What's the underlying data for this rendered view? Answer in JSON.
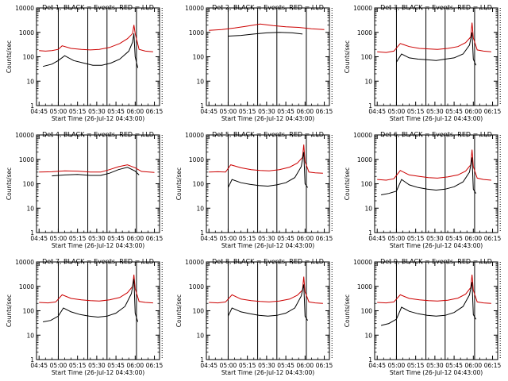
{
  "figure": {
    "panels": [
      {
        "title": "Det 1, BLACK = Events, RED = LLD",
        "xlabel": "Start Time (26-Jul-12 04:43:00)",
        "ylabel": "Counts/sec"
      },
      {
        "title": "Det 2, BLACK = Events, RED = LLD",
        "xlabel": "Start Time (26-Jul-12 04:43:00)",
        "ylabel": ""
      },
      {
        "title": "Det 3, BLACK = Events, RED = LLD",
        "xlabel": "Start Time (26-Jul-12 04:43:00)",
        "ylabel": "Counts/sec"
      },
      {
        "title": "Det 4, BLACK = Events, RED = LLD",
        "xlabel": "Start Time (26-Jul-12 04:43:00)",
        "ylabel": "Counts/sec"
      },
      {
        "title": "Det 5, BLACK = Events, RED = LLD",
        "xlabel": "Start Time (26-Jul-12 04:43:00)",
        "ylabel": "Counts/sec"
      },
      {
        "title": "Det 6, BLACK = Events, RED = LLD",
        "xlabel": "Start Time (26-Jul-12 04:43:00)",
        "ylabel": "Counts/sec"
      },
      {
        "title": "Det 7, BLACK = Events, RED = LLD",
        "xlabel": "Start Time (26-Jul-12 04:43:00)",
        "ylabel": "Counts/sec"
      },
      {
        "title": "Det 8, BLACK = Events, RED = LLD",
        "xlabel": "Start Time (26-Jul-12 04:43:00)",
        "ylabel": "Counts/sec"
      },
      {
        "title": "Det 9, BLACK = Events, RED = LLD",
        "xlabel": "Start Time (26-Jul-12 04:43:00)",
        "ylabel": "Counts/sec"
      }
    ]
  },
  "chart_data": [
    {
      "panel": 1,
      "type": "line",
      "title": "Det 1, BLACK = Events, RED = LLD",
      "xlabel": "Start Time (26-Jul-12 04:43:00)",
      "ylabel": "Counts/sec",
      "x_ticks": [
        "04:45",
        "05:00",
        "05:15",
        "05:30",
        "05:45",
        "06:00",
        "06:15"
      ],
      "y_ticks": [
        "1",
        "10",
        "100",
        "1000",
        "10000"
      ],
      "y_scale": "log",
      "ylim": [
        1,
        10000
      ],
      "xlim_minutes": [
        -2,
        94
      ],
      "vlines_solid": [
        "05:00",
        "05:23",
        "05:38",
        "06:01"
      ],
      "vlines_dotted": [
        "06:21"
      ],
      "series": [
        {
          "color": "#cc0000",
          "x": [
            "04:45",
            "04:50",
            "04:55",
            "05:00",
            "05:03",
            "05:10",
            "05:18",
            "05:25",
            "05:32",
            "05:40",
            "05:48",
            "05:54",
            "05:58",
            "05:59",
            "06:00",
            "06:03",
            "06:08",
            "06:14"
          ],
          "values": [
            180,
            170,
            180,
            200,
            280,
            220,
            200,
            190,
            200,
            240,
            350,
            550,
            900,
            2000,
            900,
            200,
            170,
            160
          ]
        },
        {
          "color": "#000000",
          "x": [
            "04:48",
            "04:55",
            "05:00",
            "05:05",
            "05:12",
            "05:20",
            "05:27",
            "05:34",
            "05:41",
            "05:48",
            "05:55",
            "05:58",
            "05:59",
            "06:00",
            "06:02"
          ],
          "values": [
            40,
            50,
            70,
            110,
            70,
            55,
            45,
            45,
            55,
            80,
            170,
            400,
            900,
            100,
            35
          ]
        }
      ]
    },
    {
      "panel": 2,
      "type": "line",
      "title": "Det 2, BLACK = Events, RED = LLD",
      "xlabel": "Start Time (26-Jul-12 04:43:00)",
      "ylabel": "",
      "x_ticks": [
        "04:45",
        "05:00",
        "05:15",
        "05:30",
        "05:45",
        "06:00",
        "06:15"
      ],
      "y_ticks": [
        "1",
        "10",
        "100",
        "1000",
        "10000"
      ],
      "y_scale": "log",
      "ylim": [
        1,
        10000
      ],
      "xlim_minutes": [
        -2,
        94
      ],
      "vlines_solid": [
        "05:00",
        "05:23",
        "05:38",
        "06:01"
      ],
      "vlines_dotted": [
        "06:21"
      ],
      "series": [
        {
          "color": "#cc0000",
          "x": [
            "04:45",
            "04:55",
            "05:05",
            "05:15",
            "05:25",
            "05:35",
            "05:45",
            "05:55",
            "06:05",
            "06:15"
          ],
          "values": [
            1200,
            1300,
            1500,
            1800,
            2200,
            1900,
            1700,
            1600,
            1400,
            1300
          ]
        },
        {
          "color": "#000000",
          "x": [
            "05:00",
            "05:10",
            "05:20",
            "05:30",
            "05:40",
            "05:50",
            "05:58"
          ],
          "values": [
            700,
            750,
            850,
            950,
            1000,
            950,
            850
          ]
        }
      ]
    },
    {
      "panel": 3,
      "type": "line",
      "title": "Det 3, BLACK = Events, RED = LLD",
      "xlabel": "Start Time (26-Jul-12 04:43:00)",
      "ylabel": "Counts/sec",
      "x_ticks": [
        "04:45",
        "05:00",
        "05:15",
        "05:30",
        "05:45",
        "06:00",
        "06:15"
      ],
      "y_ticks": [
        "1",
        "10",
        "100",
        "1000",
        "10000"
      ],
      "y_scale": "log",
      "ylim": [
        1,
        10000
      ],
      "xlim_minutes": [
        -2,
        94
      ],
      "vlines_solid": [
        "05:00",
        "05:23",
        "05:38",
        "06:01"
      ],
      "vlines_dotted": [
        "06:21"
      ],
      "series": [
        {
          "color": "#cc0000",
          "x": [
            "04:45",
            "04:52",
            "04:58",
            "05:03",
            "05:10",
            "05:18",
            "05:25",
            "05:32",
            "05:40",
            "05:48",
            "05:54",
            "05:58",
            "05:59",
            "06:00",
            "06:03",
            "06:08",
            "06:14"
          ],
          "values": [
            160,
            150,
            170,
            350,
            260,
            220,
            210,
            200,
            220,
            260,
            380,
            650,
            2500,
            600,
            190,
            170,
            160
          ]
        },
        {
          "color": "#000000",
          "x": [
            "05:00",
            "05:04",
            "05:10",
            "05:17",
            "05:24",
            "05:31",
            "05:38",
            "05:45",
            "05:52",
            "05:57",
            "05:59",
            "06:00",
            "06:02"
          ],
          "values": [
            60,
            130,
            90,
            80,
            75,
            70,
            80,
            90,
            130,
            300,
            1000,
            80,
            45
          ]
        }
      ]
    },
    {
      "panel": 4,
      "type": "line",
      "title": "Det 4, BLACK = Events, RED = LLD",
      "xlabel": "Start Time (26-Jul-12 04:43:00)",
      "ylabel": "Counts/sec",
      "x_ticks": [
        "04:45",
        "05:00",
        "05:15",
        "05:30",
        "05:45",
        "06:00",
        "06:15"
      ],
      "y_ticks": [
        "1",
        "10",
        "100",
        "1000",
        "10000"
      ],
      "y_scale": "log",
      "ylim": [
        1,
        10000
      ],
      "xlim_minutes": [
        -2,
        94
      ],
      "vlines_solid": [
        "05:00",
        "05:23",
        "05:38",
        "06:01"
      ],
      "vlines_dotted": [
        "06:21"
      ],
      "series": [
        {
          "color": "#cc0000",
          "x": [
            "04:45",
            "04:55",
            "05:05",
            "05:15",
            "05:25",
            "05:33",
            "05:40",
            "05:47",
            "05:54",
            "06:00",
            "06:05",
            "06:15"
          ],
          "values": [
            300,
            310,
            340,
            330,
            300,
            300,
            380,
            500,
            600,
            450,
            320,
            290
          ]
        },
        {
          "color": "#000000",
          "x": [
            "04:55",
            "05:05",
            "05:15",
            "05:25",
            "05:33",
            "05:40",
            "05:47",
            "05:54",
            "06:00",
            "06:03"
          ],
          "values": [
            210,
            230,
            240,
            220,
            220,
            270,
            380,
            470,
            330,
            230
          ]
        }
      ]
    },
    {
      "panel": 5,
      "type": "line",
      "title": "Det 5, BLACK = Events, RED = LLD",
      "xlabel": "Start Time (26-Jul-12 04:43:00)",
      "ylabel": "Counts/sec",
      "x_ticks": [
        "04:45",
        "05:00",
        "05:15",
        "05:30",
        "05:45",
        "06:00",
        "06:15"
      ],
      "y_ticks": [
        "1",
        "10",
        "100",
        "1000",
        "10000"
      ],
      "y_scale": "log",
      "ylim": [
        1,
        10000
      ],
      "xlim_minutes": [
        -2,
        94
      ],
      "vlines_solid": [
        "05:00",
        "05:23",
        "05:38",
        "06:01"
      ],
      "vlines_dotted": [
        "06:21"
      ],
      "series": [
        {
          "color": "#cc0000",
          "x": [
            "04:45",
            "04:52",
            "04:58",
            "05:02",
            "05:10",
            "05:18",
            "05:25",
            "05:32",
            "05:40",
            "05:48",
            "05:54",
            "05:58",
            "05:59",
            "06:00",
            "06:03",
            "06:08",
            "06:14"
          ],
          "values": [
            300,
            310,
            300,
            600,
            450,
            380,
            350,
            340,
            380,
            480,
            700,
            1200,
            4000,
            800,
            300,
            280,
            270
          ]
        },
        {
          "color": "#000000",
          "x": [
            "05:00",
            "05:03",
            "05:10",
            "05:17",
            "05:24",
            "05:31",
            "05:38",
            "05:45",
            "05:52",
            "05:57",
            "05:59",
            "06:00",
            "06:02"
          ],
          "values": [
            70,
            150,
            110,
            95,
            85,
            80,
            90,
            110,
            180,
            500,
            2000,
            100,
            70
          ]
        }
      ]
    },
    {
      "panel": 6,
      "type": "line",
      "title": "Det 6, BLACK = Events, RED = LLD",
      "xlabel": "Start Time (26-Jul-12 04:43:00)",
      "ylabel": "Counts/sec",
      "x_ticks": [
        "04:45",
        "05:00",
        "05:15",
        "05:30",
        "05:45",
        "06:00",
        "06:15"
      ],
      "y_ticks": [
        "1",
        "10",
        "100",
        "1000",
        "10000"
      ],
      "y_scale": "log",
      "ylim": [
        1,
        10000
      ],
      "xlim_minutes": [
        -2,
        94
      ],
      "vlines_solid": [
        "05:00",
        "05:23",
        "05:38",
        "06:01"
      ],
      "vlines_dotted": [
        "06:21"
      ],
      "series": [
        {
          "color": "#cc0000",
          "x": [
            "04:45",
            "04:52",
            "04:58",
            "05:03",
            "05:10",
            "05:18",
            "05:25",
            "05:32",
            "05:40",
            "05:48",
            "05:54",
            "05:58",
            "05:59",
            "06:00",
            "06:03",
            "06:08",
            "06:14"
          ],
          "values": [
            150,
            140,
            160,
            350,
            230,
            200,
            180,
            170,
            190,
            230,
            330,
            600,
            2500,
            500,
            170,
            150,
            140
          ]
        },
        {
          "color": "#000000",
          "x": [
            "04:48",
            "04:54",
            "05:00",
            "05:04",
            "05:10",
            "05:17",
            "05:24",
            "05:31",
            "05:38",
            "05:45",
            "05:52",
            "05:57",
            "05:59",
            "06:00",
            "06:02"
          ],
          "values": [
            35,
            40,
            50,
            150,
            90,
            70,
            60,
            55,
            60,
            75,
            120,
            300,
            1200,
            60,
            40
          ]
        }
      ]
    },
    {
      "panel": 7,
      "type": "line",
      "title": "Det 7, BLACK = Events, RED = LLD",
      "xlabel": "Start Time (26-Jul-12 04:43:00)",
      "ylabel": "Counts/sec",
      "x_ticks": [
        "04:45",
        "05:00",
        "05:15",
        "05:30",
        "05:45",
        "06:00",
        "06:15"
      ],
      "y_ticks": [
        "1",
        "10",
        "100",
        "1000",
        "10000"
      ],
      "y_scale": "log",
      "ylim": [
        1,
        10000
      ],
      "xlim_minutes": [
        -2,
        94
      ],
      "vlines_solid": [
        "05:00",
        "05:23",
        "05:38",
        "06:01"
      ],
      "vlines_dotted": [
        "06:21"
      ],
      "series": [
        {
          "color": "#cc0000",
          "x": [
            "04:45",
            "04:52",
            "04:58",
            "05:03",
            "05:10",
            "05:18",
            "05:25",
            "05:32",
            "05:40",
            "05:48",
            "05:54",
            "05:58",
            "05:59",
            "06:00",
            "06:03",
            "06:08",
            "06:14"
          ],
          "values": [
            220,
            210,
            230,
            450,
            320,
            280,
            260,
            250,
            280,
            350,
            550,
            1000,
            3000,
            800,
            240,
            220,
            210
          ]
        },
        {
          "color": "#000000",
          "x": [
            "04:48",
            "04:54",
            "05:00",
            "05:04",
            "05:10",
            "05:17",
            "05:24",
            "05:31",
            "05:38",
            "05:45",
            "05:52",
            "05:57",
            "05:59",
            "06:00",
            "06:02"
          ],
          "values": [
            35,
            40,
            60,
            130,
            90,
            70,
            60,
            55,
            60,
            80,
            150,
            500,
            2000,
            80,
            35
          ]
        }
      ]
    },
    {
      "panel": 8,
      "type": "line",
      "title": "Det 8, BLACK = Events, RED = LLD",
      "xlabel": "Start Time (26-Jul-12 04:43:00)",
      "ylabel": "Counts/sec",
      "x_ticks": [
        "04:45",
        "05:00",
        "05:15",
        "05:30",
        "05:45",
        "06:00",
        "06:15"
      ],
      "y_ticks": [
        "1",
        "10",
        "100",
        "1000",
        "10000"
      ],
      "y_scale": "log",
      "ylim": [
        1,
        10000
      ],
      "xlim_minutes": [
        -2,
        94
      ],
      "vlines_solid": [
        "05:00",
        "05:23",
        "05:38",
        "06:01"
      ],
      "vlines_dotted": [
        "06:21"
      ],
      "series": [
        {
          "color": "#cc0000",
          "x": [
            "04:45",
            "04:52",
            "04:58",
            "05:03",
            "05:10",
            "05:18",
            "05:25",
            "05:32",
            "05:40",
            "05:48",
            "05:54",
            "05:58",
            "05:59",
            "06:00",
            "06:03",
            "06:08",
            "06:14"
          ],
          "values": [
            220,
            210,
            230,
            450,
            300,
            260,
            240,
            230,
            250,
            300,
            430,
            700,
            2500,
            600,
            230,
            210,
            200
          ]
        },
        {
          "color": "#000000",
          "x": [
            "05:00",
            "05:03",
            "05:10",
            "05:17",
            "05:24",
            "05:31",
            "05:38",
            "05:45",
            "05:52",
            "05:57",
            "05:59",
            "06:00",
            "06:02"
          ],
          "values": [
            60,
            130,
            90,
            75,
            65,
            60,
            65,
            80,
            130,
            400,
            1200,
            60,
            40
          ]
        }
      ]
    },
    {
      "panel": 9,
      "type": "line",
      "title": "Det 9, BLACK = Events, RED = LLD",
      "xlabel": "Start Time (26-Jul-12 04:43:00)",
      "ylabel": "Counts/sec",
      "x_ticks": [
        "04:45",
        "05:00",
        "05:15",
        "05:30",
        "05:45",
        "06:00",
        "06:15"
      ],
      "y_ticks": [
        "1",
        "10",
        "100",
        "1000",
        "10000"
      ],
      "y_scale": "log",
      "ylim": [
        1,
        10000
      ],
      "xlim_minutes": [
        -2,
        94
      ],
      "vlines_solid": [
        "05:00",
        "05:23",
        "05:38",
        "06:01"
      ],
      "vlines_dotted": [
        "06:21"
      ],
      "series": [
        {
          "color": "#cc0000",
          "x": [
            "04:45",
            "04:52",
            "04:58",
            "05:03",
            "05:10",
            "05:18",
            "05:25",
            "05:32",
            "05:40",
            "05:48",
            "05:54",
            "05:58",
            "05:59",
            "06:00",
            "06:03",
            "06:08",
            "06:14"
          ],
          "values": [
            220,
            210,
            230,
            450,
            320,
            280,
            260,
            250,
            270,
            330,
            480,
            900,
            3000,
            700,
            230,
            210,
            200
          ]
        },
        {
          "color": "#000000",
          "x": [
            "04:48",
            "04:54",
            "05:00",
            "05:04",
            "05:10",
            "05:17",
            "05:24",
            "05:31",
            "05:38",
            "05:45",
            "05:52",
            "05:57",
            "05:59",
            "06:00",
            "06:02"
          ],
          "values": [
            25,
            30,
            45,
            140,
            95,
            75,
            65,
            60,
            65,
            85,
            150,
            450,
            1500,
            70,
            45
          ]
        }
      ]
    }
  ]
}
